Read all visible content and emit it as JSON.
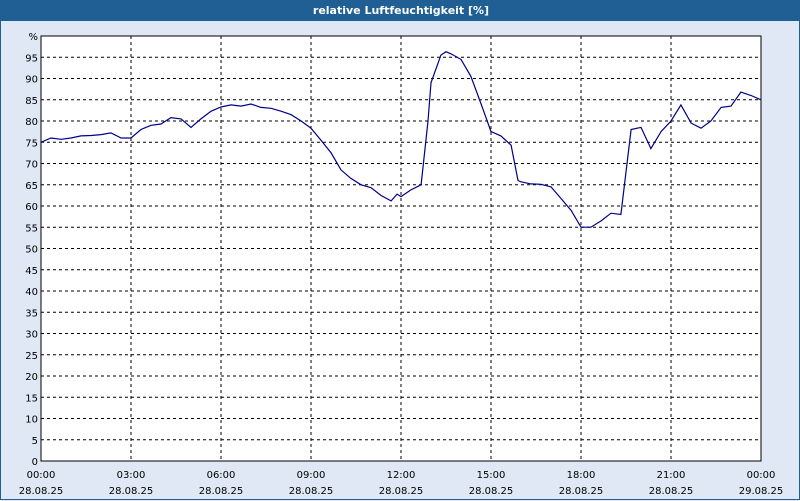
{
  "window": {
    "title": "relative Luftfeuchtigkeit [%]"
  },
  "colors": {
    "titlebar": "#1f5f94",
    "background": "#dfe8f4",
    "plot": "#ffffff",
    "line": "#00008b",
    "grid": "#000000"
  },
  "chart_data": {
    "type": "line",
    "title": "relative Luftfeuchtigkeit [%]",
    "ylabel": "%",
    "ylim": [
      0,
      100
    ],
    "yticks": [
      0,
      5,
      10,
      15,
      20,
      25,
      30,
      35,
      40,
      45,
      50,
      55,
      60,
      65,
      70,
      75,
      80,
      85,
      90,
      95
    ],
    "xlim_hours": [
      0,
      24
    ],
    "xticks": [
      {
        "h": 0,
        "time": "00:00",
        "date": "28.08.25"
      },
      {
        "h": 3,
        "time": "03:00",
        "date": "28.08.25"
      },
      {
        "h": 6,
        "time": "06:00",
        "date": "28.08.25"
      },
      {
        "h": 9,
        "time": "09:00",
        "date": "28.08.25"
      },
      {
        "h": 12,
        "time": "12:00",
        "date": "28.08.25"
      },
      {
        "h": 15,
        "time": "15:00",
        "date": "28.08.25"
      },
      {
        "h": 18,
        "time": "18:00",
        "date": "28.08.25"
      },
      {
        "h": 21,
        "time": "21:00",
        "date": "28.08.25"
      },
      {
        "h": 24,
        "time": "00:00",
        "date": "29.08.25"
      }
    ],
    "grid": true,
    "series": [
      {
        "points": [
          [
            0,
            75
          ],
          [
            0.33,
            76
          ],
          [
            0.67,
            75.7
          ],
          [
            1.0,
            76
          ],
          [
            1.33,
            76.5
          ],
          [
            1.67,
            76.6
          ],
          [
            2.0,
            76.8
          ],
          [
            2.33,
            77.2
          ],
          [
            2.67,
            76
          ],
          [
            3.0,
            76
          ],
          [
            3.33,
            78
          ],
          [
            3.67,
            79
          ],
          [
            4.0,
            79.3
          ],
          [
            4.33,
            80.8
          ],
          [
            4.67,
            80.5
          ],
          [
            5.0,
            78.5
          ],
          [
            5.33,
            80.5
          ],
          [
            5.67,
            82.3
          ],
          [
            6.0,
            83.3
          ],
          [
            6.33,
            83.8
          ],
          [
            6.67,
            83.5
          ],
          [
            7.0,
            84
          ],
          [
            7.33,
            83.2
          ],
          [
            7.67,
            83
          ],
          [
            8.0,
            82.3
          ],
          [
            8.33,
            81.5
          ],
          [
            8.67,
            80
          ],
          [
            9.0,
            78.3
          ],
          [
            9.33,
            75.5
          ],
          [
            9.67,
            72.5
          ],
          [
            10.0,
            68.5
          ],
          [
            10.33,
            66.5
          ],
          [
            10.67,
            65
          ],
          [
            11.0,
            64.3
          ],
          [
            11.33,
            62.5
          ],
          [
            11.67,
            61.2
          ],
          [
            11.87,
            62.8
          ],
          [
            12.0,
            62.2
          ],
          [
            12.33,
            63.8
          ],
          [
            12.67,
            65
          ],
          [
            12.9,
            80
          ],
          [
            13.0,
            89
          ],
          [
            13.33,
            95.5
          ],
          [
            13.5,
            96.3
          ],
          [
            13.67,
            95.8
          ],
          [
            14.0,
            94.5
          ],
          [
            14.33,
            90.5
          ],
          [
            14.67,
            84
          ],
          [
            15.0,
            77.5
          ],
          [
            15.33,
            76.5
          ],
          [
            15.67,
            74.3
          ],
          [
            15.9,
            66
          ],
          [
            16.0,
            65.7
          ],
          [
            16.33,
            65.2
          ],
          [
            16.67,
            65.1
          ],
          [
            17.0,
            64.5
          ],
          [
            17.33,
            61.8
          ],
          [
            17.67,
            59
          ],
          [
            18.0,
            55
          ],
          [
            18.33,
            55
          ],
          [
            18.67,
            56.5
          ],
          [
            19.0,
            58.3
          ],
          [
            19.33,
            58
          ],
          [
            19.67,
            78
          ],
          [
            20.0,
            78.5
          ],
          [
            20.33,
            73.5
          ],
          [
            20.67,
            77.5
          ],
          [
            21.0,
            80
          ],
          [
            21.33,
            83.8
          ],
          [
            21.67,
            79.5
          ],
          [
            22.0,
            78.3
          ],
          [
            22.33,
            80
          ],
          [
            22.67,
            83.2
          ],
          [
            23.0,
            83.5
          ],
          [
            23.33,
            86.8
          ],
          [
            23.67,
            86
          ],
          [
            24.0,
            85
          ]
        ]
      }
    ]
  }
}
